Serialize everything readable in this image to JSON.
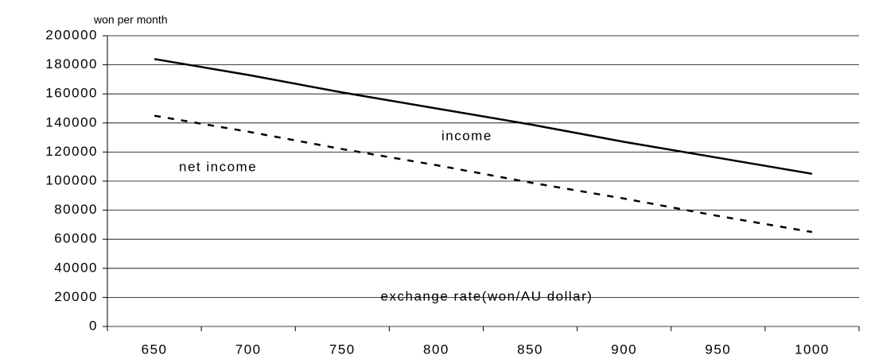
{
  "chart_data": {
    "type": "line",
    "y_label": "won per month",
    "x_label": "exchange rate(won/AU dollar)",
    "categories": [
      "650",
      "700",
      "750",
      "800",
      "850",
      "900",
      "950",
      "1000"
    ],
    "series": [
      {
        "name": "income",
        "color": "#000000",
        "style": "solid",
        "values": [
          184000,
          173000,
          161000,
          150000,
          139000,
          127000,
          116000,
          105000
        ]
      },
      {
        "name": "net income",
        "color": "#000000",
        "style": "dashed",
        "values": [
          145000,
          134000,
          122000,
          111000,
          99000,
          88000,
          76000,
          65000
        ]
      }
    ],
    "ylim": [
      0,
      200000
    ],
    "yticks": [
      0,
      20000,
      40000,
      60000,
      80000,
      100000,
      120000,
      140000,
      160000,
      180000,
      200000
    ],
    "grid": true
  }
}
